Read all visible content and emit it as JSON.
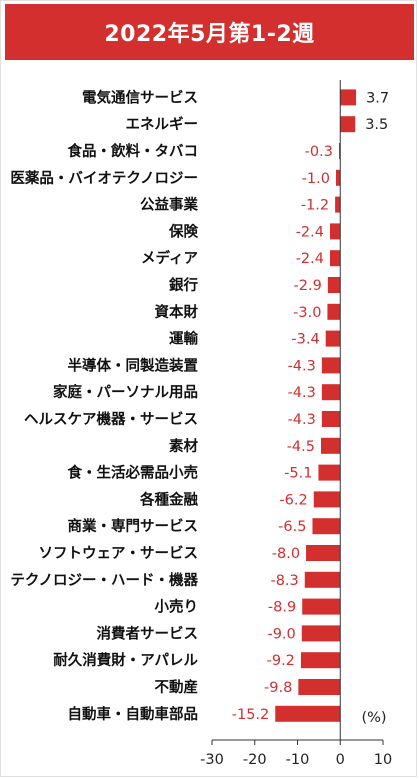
{
  "header": {
    "title": "2022年5月第1-2週"
  },
  "colors": {
    "accent": "#d32f2f",
    "bar": "#d32f2f",
    "negative_label": "#d32f2f",
    "positive_label": "#222222"
  },
  "chart_data": {
    "type": "bar",
    "orientation": "horizontal",
    "title": "2022年5月第1-2週",
    "unit_label": "(%)",
    "xlim": [
      -30,
      10
    ],
    "x_ticks": [
      "-30",
      "-20",
      "-10",
      "0",
      "10"
    ],
    "x_tick_values": [
      -30,
      -20,
      -10,
      0,
      10
    ],
    "grid": false,
    "categories": [
      "電気通信サービス",
      "エネルギー",
      "食品・飲料・タバコ",
      "医薬品・バイオテクノロジー",
      "公益事業",
      "保険",
      "メディア",
      "銀行",
      "資本財",
      "運輸",
      "半導体・同製造装置",
      "家庭・パーソナル用品",
      "ヘルスケア機器・サービス",
      "素材",
      "食・生活必需品小売",
      "各種金融",
      "商業・専門サービス",
      "ソフトウェア・サービス",
      "テクノロジー・ハード・機器",
      "小売り",
      "消費者サービス",
      "耐久消費財・アパレル",
      "不動産",
      "自動車・自動車部品"
    ],
    "values": [
      3.7,
      3.5,
      -0.3,
      -1.0,
      -1.2,
      -2.4,
      -2.4,
      -2.9,
      -3.0,
      -3.4,
      -4.3,
      -4.3,
      -4.3,
      -4.5,
      -5.1,
      -6.2,
      -6.5,
      -8.0,
      -8.3,
      -8.9,
      -9.0,
      -9.2,
      -9.8,
      -15.2
    ],
    "value_labels": [
      "3.7",
      "3.5",
      "-0.3",
      "-1.0",
      "-1.2",
      "-2.4",
      "-2.4",
      "-2.9",
      "-3.0",
      "-3.4",
      "-4.3",
      "-4.3",
      "-4.3",
      "-4.5",
      "-5.1",
      "-6.2",
      "-6.5",
      "-8.0",
      "-8.3",
      "-8.9",
      "-9.0",
      "-9.2",
      "-9.8",
      "-15.2"
    ]
  }
}
